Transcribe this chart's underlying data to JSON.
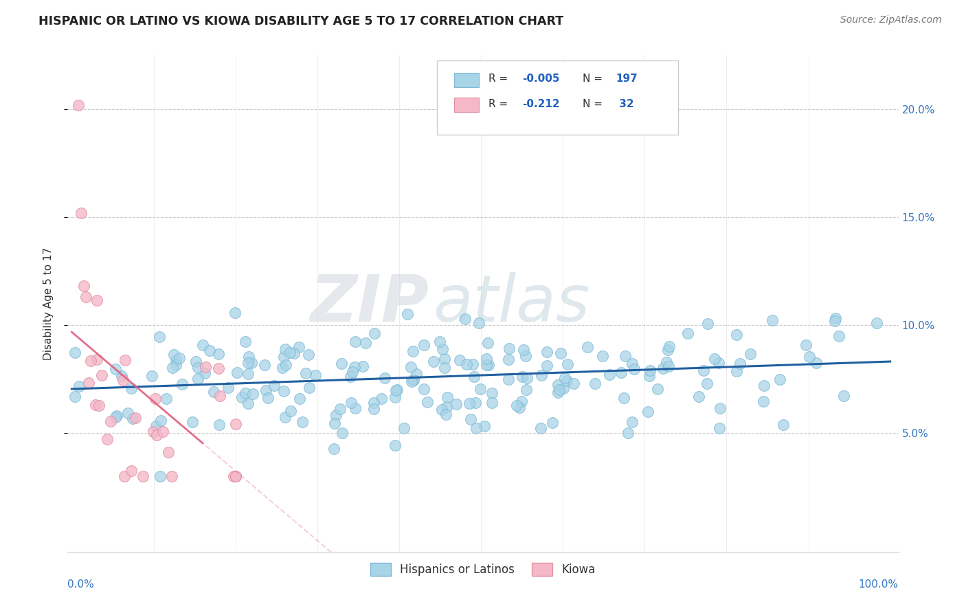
{
  "title": "HISPANIC OR LATINO VS KIOWA DISABILITY AGE 5 TO 17 CORRELATION CHART",
  "source_text": "Source: ZipAtlas.com",
  "ylabel": "Disability Age 5 to 17",
  "blue_color": "#a8d4e8",
  "blue_edge_color": "#7bb8d4",
  "pink_color": "#f4b8c8",
  "pink_edge_color": "#e090a8",
  "blue_line_color": "#2060a0",
  "pink_line_color": "#e06080",
  "watermark_zip": "ZIP",
  "watermark_atlas": "atlas",
  "legend_blue_r": "-0.005",
  "legend_blue_n": "197",
  "legend_pink_r": "-0.212",
  "legend_pink_n": "32",
  "figsize": [
    14.06,
    8.92
  ],
  "dpi": 100,
  "ylim_low": -0.005,
  "ylim_high": 0.225,
  "xlim_low": -0.005,
  "xlim_high": 1.01,
  "yticks": [
    0.05,
    0.1,
    0.15,
    0.2
  ],
  "yticklabels_right": [
    "5.0%",
    "10.0%",
    "15.0%",
    "20.0%"
  ]
}
